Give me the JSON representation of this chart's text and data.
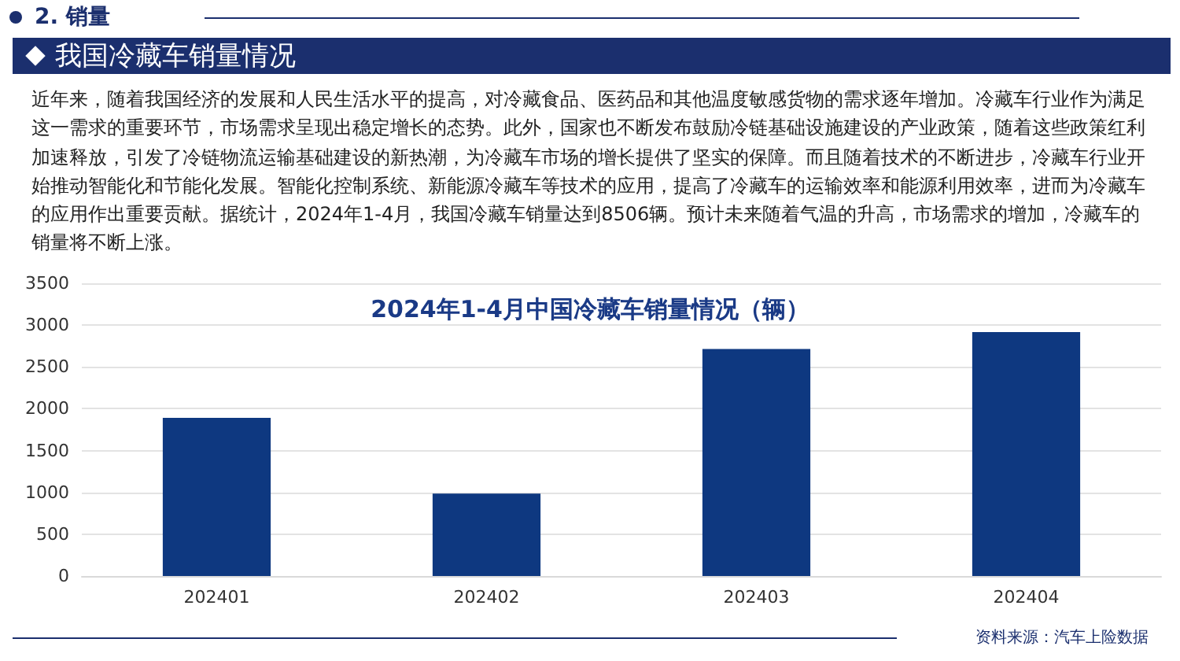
{
  "chart_data": {
    "type": "bar",
    "title": "2024年1-4月中国冷藏车销量情况（辆）",
    "annotations": [
      "2. 销量",
      "我国冷藏车销量情况",
      "近年来，随着我国经济的发展和人民生活水平的提高，对冷藏食品、医药品和其他温度敏感货物的需求逐年增加。冷藏车行业作为满足这一需求的重要环节，市场需求呈现出稳定增长的态势。此外，国家也不断发布鼓励冷链基础设施建设的产业政策，随着这些政策红利加速释放，引发了冷链物流运输基础建设的新热潮，为冷藏车市场的增长提供了坚实的保障。而且随着技术的不断进步，冷藏车行业开始推动智能化和节能化发展。智能化控制系统、新能源冷藏车等技术的应用，提高了冷藏车的运输效率和能源利用效率，进而为冷藏车的应用作出重要贡献。据统计，2024年1-4月，我国冷藏车销量达到8506辆。预计未来随着气温的升高，市场需求的增加，冷藏车的销量将不断上涨。",
      "资料来源：汽车上险数据"
    ],
    "categories": [
      "202401",
      "202402",
      "202403",
      "202404"
    ],
    "values": [
      1890,
      985,
      2715,
      2916
    ],
    "color": "#0e3880",
    "ylim": [
      0,
      3500
    ],
    "yticks": [
      0,
      500,
      1000,
      1500,
      2000,
      2500,
      3000,
      3500
    ],
    "grid": "y"
  }
}
